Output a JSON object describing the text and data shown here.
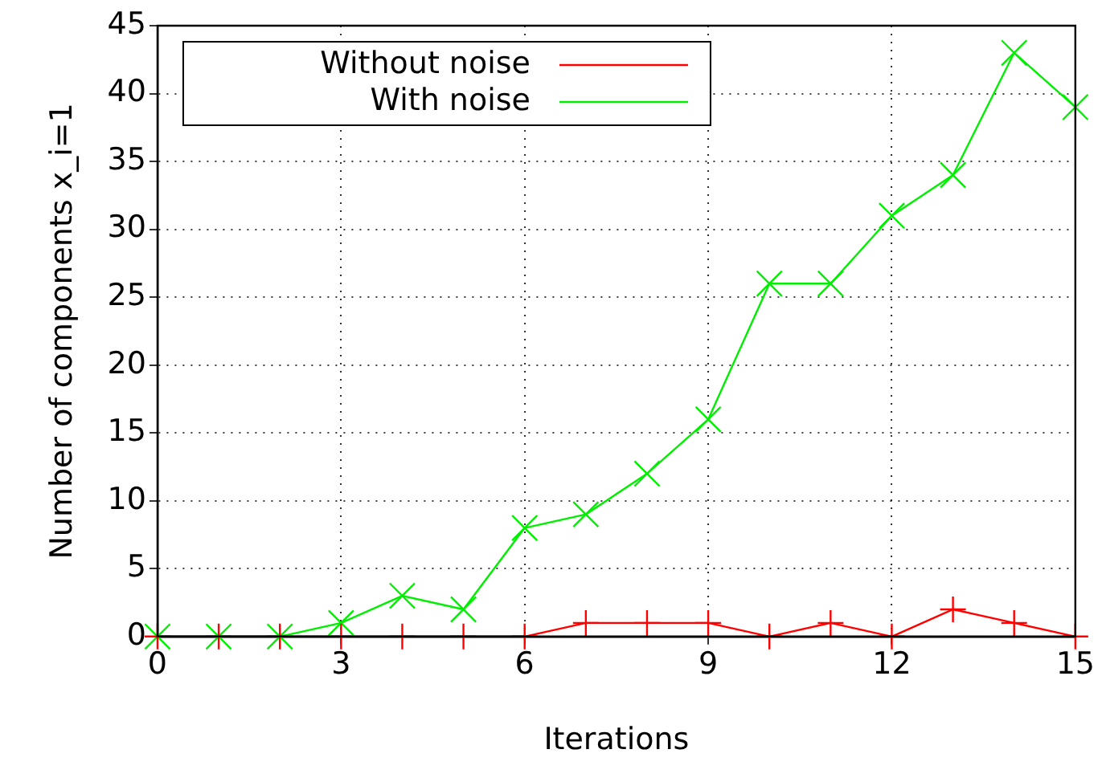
{
  "chart_data": {
    "type": "line",
    "xlabel": "Iterations",
    "ylabel": "Number of components x_i=1",
    "x": [
      0,
      1,
      2,
      3,
      4,
      5,
      6,
      7,
      8,
      9,
      10,
      11,
      12,
      13,
      14,
      15
    ],
    "series": [
      {
        "name": "Without noise",
        "color": "#ff0000",
        "marker": "cross",
        "values": [
          0,
          0,
          0,
          0,
          0,
          0,
          0,
          1,
          1,
          1,
          0,
          1,
          0,
          2,
          1,
          0
        ]
      },
      {
        "name": "With noise",
        "color": "#00ee00",
        "marker": "cross",
        "values": [
          0,
          0,
          0,
          1,
          3,
          2,
          8,
          9,
          12,
          16,
          26,
          26,
          31,
          34,
          43,
          39
        ]
      }
    ],
    "xlim": [
      0,
      15
    ],
    "xticks": [
      0,
      3,
      6,
      9,
      12,
      15
    ],
    "ylim": [
      0,
      45
    ],
    "yticks": [
      0,
      5,
      10,
      15,
      20,
      25,
      30,
      35,
      40,
      45
    ],
    "grid": true,
    "legend": "top left",
    "line_style": "solid"
  }
}
